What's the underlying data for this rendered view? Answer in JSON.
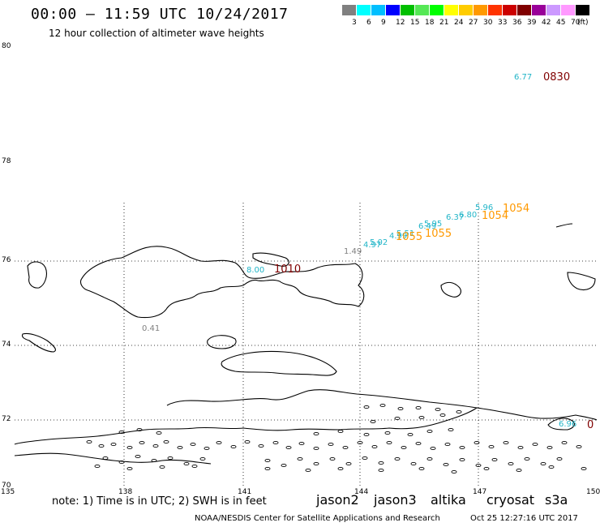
{
  "title": "00:00 – 11:59 UTC 10/24/2017",
  "subtitle": "12 hour collection of altimeter wave heights",
  "scale": {
    "colors": [
      "#808080",
      "#00ffff",
      "#00bfff",
      "#0000ff",
      "#00bf00",
      "#55e855",
      "#00ff00",
      "#ffff00",
      "#ffcc00",
      "#ff9900",
      "#ff3300",
      "#cc0000",
      "#800000",
      "#990099",
      "#cc99ff",
      "#ff99ff",
      "#000000"
    ],
    "labels": [
      "3",
      "6",
      "9",
      "12",
      "15",
      "18",
      "21",
      "24",
      "27",
      "30",
      "33",
      "36",
      "39",
      "42",
      "45",
      "70",
      "(ft)"
    ]
  },
  "axes": {
    "lat_labels": [
      "80",
      "78",
      "76",
      "74",
      "72",
      "70"
    ],
    "lon_labels": [
      "135",
      "138",
      "141",
      "144",
      "147",
      "150"
    ]
  },
  "observations": [
    {
      "text": "6.77",
      "color": "#22b5c8"
    },
    {
      "text": "0830",
      "color": "#800000"
    },
    {
      "text": "5.96",
      "color": "#22b5c8"
    },
    {
      "text": "1054",
      "color": "#ff9900"
    },
    {
      "text": "6.80",
      "color": "#22b5c8"
    },
    {
      "text": "6.37",
      "color": "#22b5c8"
    },
    {
      "text": "1054",
      "color": "#ff9900"
    },
    {
      "text": "5.95",
      "color": "#22b5c8"
    },
    {
      "text": "6.49",
      "color": "#22b5c8"
    },
    {
      "text": "1055",
      "color": "#ff9900"
    },
    {
      "text": "5.51",
      "color": "#22b5c8"
    },
    {
      "text": "4.99",
      "color": "#22b5c8"
    },
    {
      "text": "1055",
      "color": "#ff9900"
    },
    {
      "text": "5.02",
      "color": "#22b5c8"
    },
    {
      "text": "4.97",
      "color": "#22b5c8"
    },
    {
      "text": "1.49",
      "color": "#808080"
    },
    {
      "text": "8.00",
      "color": "#22b5c8"
    },
    {
      "text": "1010",
      "color": "#800000"
    },
    {
      "text": "0.41",
      "color": "#808080"
    },
    {
      "text": "6.96",
      "color": "#22b5c8"
    },
    {
      "text": "0",
      "color": "#800000"
    }
  ],
  "note": "note:  1) Time is in UTC;  2) SWH is in feet",
  "satellites": [
    {
      "name": "jason2",
      "color": "#0000ff"
    },
    {
      "name": "jason3",
      "color": "#009900"
    },
    {
      "name": "altika",
      "color": "#ff9900"
    },
    {
      "name": "cryosat",
      "color": "#cc0000"
    },
    {
      "name": "s3a",
      "color": "#800000"
    }
  ],
  "footer": {
    "credit": "NOAA/NESDIS Center for Satellite Applications and Research",
    "timestamp": "Oct 25 12:27:16 UTC 2017"
  }
}
